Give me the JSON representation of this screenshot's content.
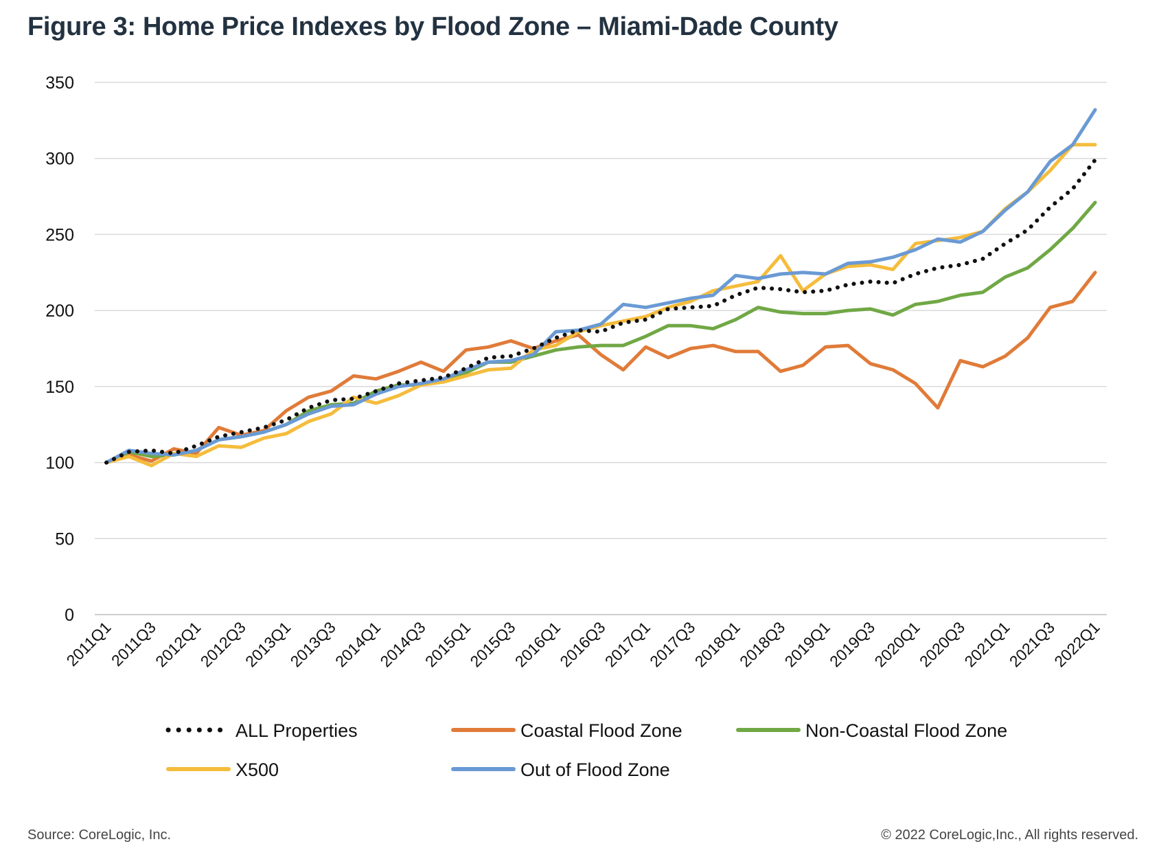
{
  "title": "Figure 3: Home Price Indexes by Flood Zone – Miami-Dade County",
  "source": "Source: CoreLogic, Inc.",
  "copyright": "© 2022 CoreLogic,Inc., All rights reserved.",
  "chart_data": {
    "type": "line",
    "title": "Figure 3: Home Price Indexes by Flood Zone – Miami-Dade County",
    "xlabel": "",
    "ylabel": "",
    "ylim": [
      0,
      350
    ],
    "yticks": [
      0,
      50,
      100,
      150,
      200,
      250,
      300,
      350
    ],
    "grid": true,
    "legend_position": "bottom",
    "x": [
      "2011Q1",
      "2011Q2",
      "2011Q3",
      "2011Q4",
      "2012Q1",
      "2012Q2",
      "2012Q3",
      "2012Q4",
      "2013Q1",
      "2013Q2",
      "2013Q3",
      "2013Q4",
      "2014Q1",
      "2014Q2",
      "2014Q3",
      "2014Q4",
      "2015Q1",
      "2015Q2",
      "2015Q3",
      "2015Q4",
      "2016Q1",
      "2016Q2",
      "2016Q3",
      "2016Q4",
      "2017Q1",
      "2017Q2",
      "2017Q3",
      "2017Q4",
      "2018Q1",
      "2018Q2",
      "2018Q3",
      "2018Q4",
      "2019Q1",
      "2019Q2",
      "2019Q3",
      "2019Q4",
      "2020Q1",
      "2020Q2",
      "2020Q3",
      "2020Q4",
      "2021Q1",
      "2021Q2",
      "2021Q3",
      "2021Q4",
      "2022Q1"
    ],
    "x_tick_labels": [
      "2011Q1",
      "2011Q3",
      "2012Q1",
      "2012Q3",
      "2013Q1",
      "2013Q3",
      "2014Q1",
      "2014Q3",
      "2015Q1",
      "2015Q3",
      "2016Q1",
      "2016Q3",
      "2017Q1",
      "2017Q3",
      "2018Q1",
      "2018Q3",
      "2019Q1",
      "2019Q3",
      "2020Q1",
      "2020Q3",
      "2021Q1",
      "2021Q3",
      "2022Q1"
    ],
    "series": [
      {
        "name": "ALL Properties",
        "color": "#111111",
        "style": "dotted",
        "values": [
          100,
          107,
          108,
          106,
          111,
          117,
          120,
          123,
          128,
          136,
          141,
          142,
          147,
          152,
          154,
          156,
          162,
          169,
          170,
          175,
          182,
          187,
          186,
          192,
          194,
          201,
          202,
          203,
          210,
          215,
          214,
          212,
          213,
          217,
          219,
          218,
          224,
          228,
          230,
          234,
          244,
          253,
          268,
          280,
          299
        ]
      },
      {
        "name": "Coastal Flood Zone",
        "color": "#E07B39",
        "style": "solid",
        "values": [
          100,
          105,
          101,
          109,
          106,
          123,
          118,
          121,
          134,
          143,
          147,
          157,
          155,
          160,
          166,
          160,
          174,
          176,
          180,
          175,
          180,
          184,
          171,
          161,
          176,
          169,
          175,
          177,
          173,
          173,
          160,
          164,
          176,
          177,
          165,
          161,
          152,
          136,
          167,
          163,
          170,
          182,
          202,
          206,
          225
        ]
      },
      {
        "name": "Non-Coastal Flood Zone",
        "color": "#70A845",
        "style": "solid",
        "values": [
          100,
          107,
          104,
          105,
          108,
          115,
          117,
          120,
          125,
          134,
          138,
          139,
          147,
          151,
          151,
          154,
          159,
          166,
          166,
          170,
          174,
          176,
          177,
          177,
          183,
          190,
          190,
          188,
          194,
          202,
          199,
          198,
          198,
          200,
          201,
          197,
          204,
          206,
          210,
          212,
          222,
          228,
          240,
          254,
          271
        ]
      },
      {
        "name": "X500",
        "color": "#F5BC3C",
        "style": "solid",
        "values": [
          100,
          104,
          98,
          106,
          104,
          111,
          110,
          116,
          119,
          127,
          132,
          143,
          139,
          144,
          151,
          153,
          157,
          161,
          162,
          174,
          177,
          186,
          190,
          193,
          196,
          202,
          206,
          213,
          216,
          219,
          236,
          213,
          224,
          229,
          230,
          227,
          244,
          246,
          248,
          252,
          267,
          278,
          292,
          309,
          309
        ]
      },
      {
        "name": "Out of Flood Zone",
        "color": "#6A9AD4",
        "style": "solid",
        "values": [
          100,
          108,
          106,
          105,
          108,
          115,
          117,
          120,
          125,
          132,
          137,
          138,
          145,
          150,
          152,
          155,
          161,
          166,
          167,
          171,
          186,
          187,
          191,
          204,
          202,
          205,
          208,
          210,
          223,
          221,
          224,
          225,
          224,
          231,
          232,
          235,
          240,
          247,
          245,
          252,
          266,
          278,
          298,
          309,
          332
        ]
      }
    ]
  }
}
